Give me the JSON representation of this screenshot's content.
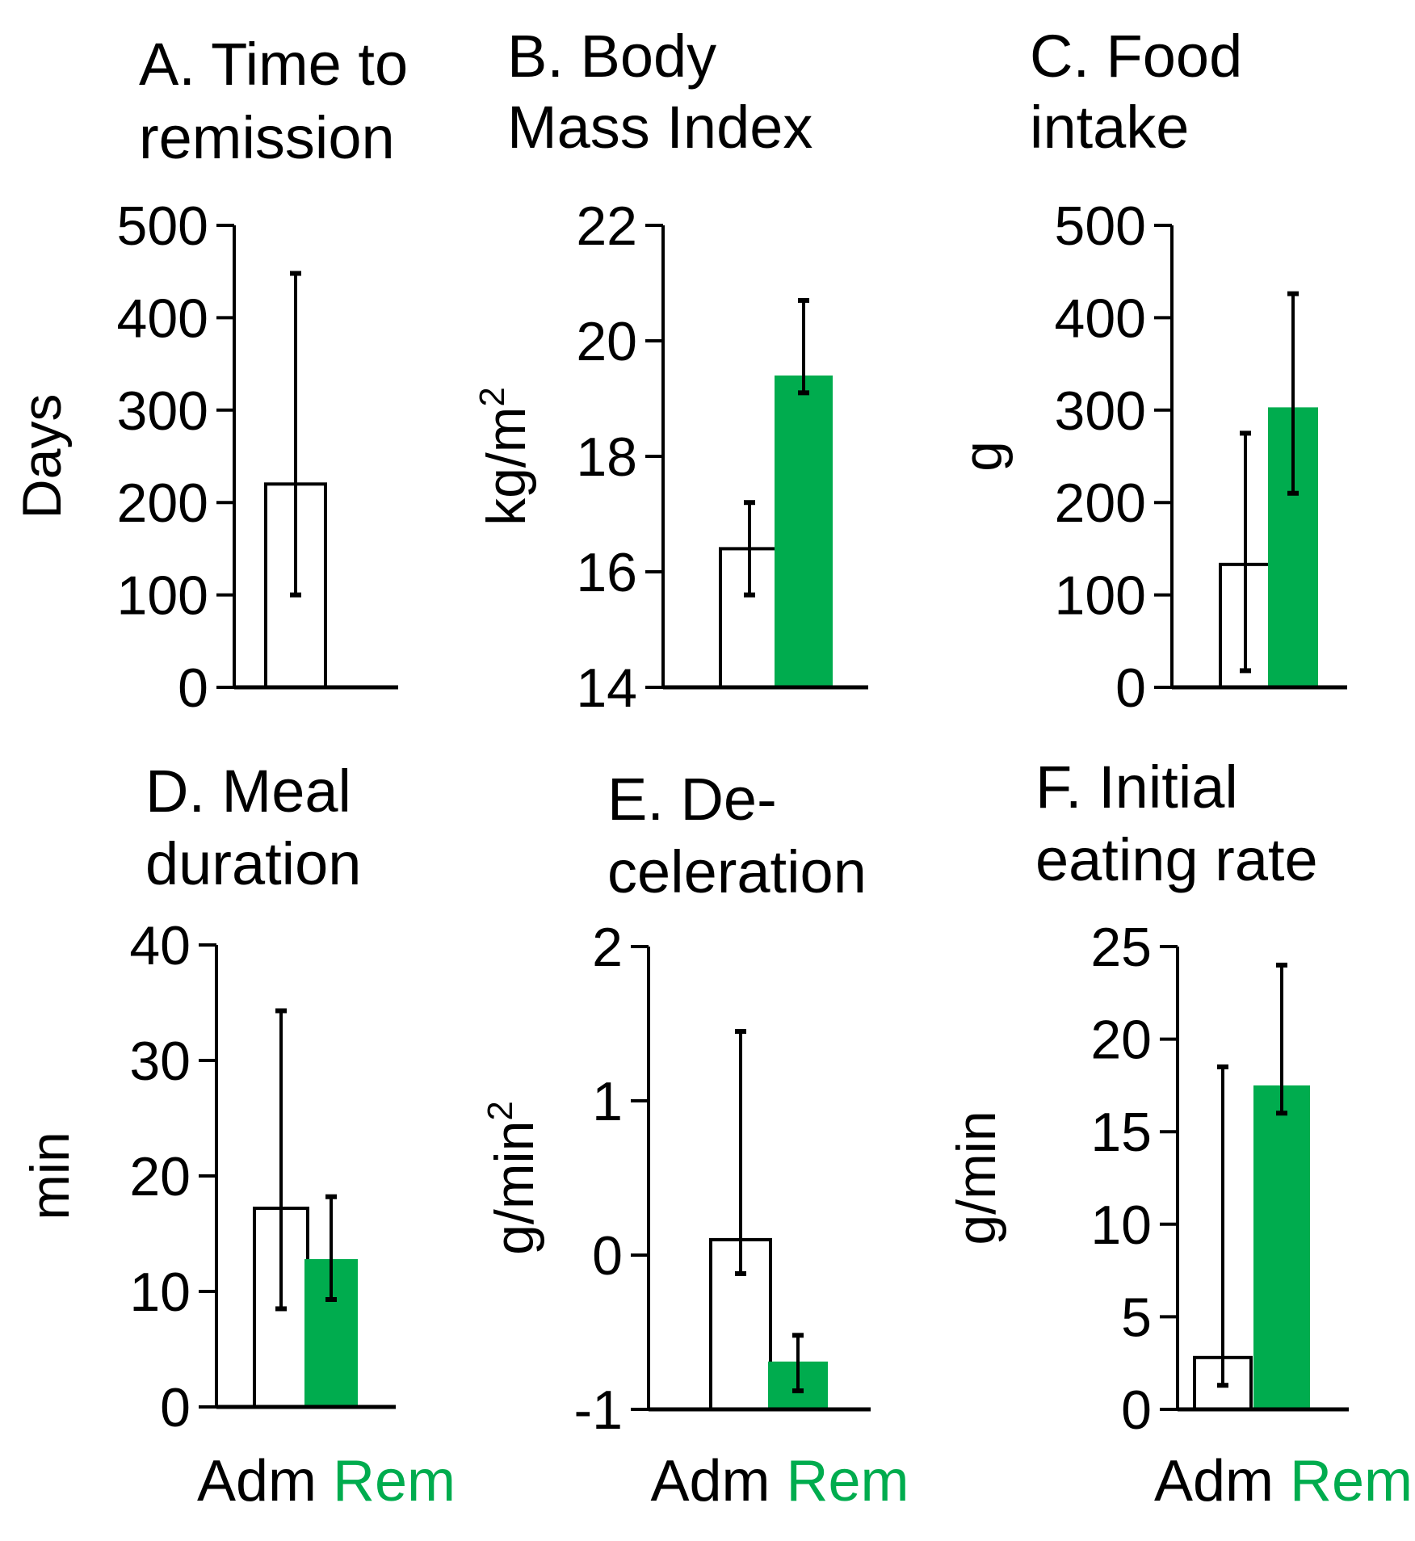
{
  "colors": {
    "adm": "#ffffff",
    "rem": "#00ac4e",
    "axis": "#000000"
  },
  "groups": [
    "Adm",
    "Rem"
  ],
  "chart_data": [
    {
      "type": "bar",
      "title": [
        "A. Time to",
        "remission"
      ],
      "ylabel": "Days",
      "ylim": [
        0,
        500
      ],
      "ticks": [
        "0",
        "100",
        "200",
        "300",
        "400",
        "500"
      ],
      "tick_values": [
        0,
        100,
        200,
        300,
        400,
        500
      ],
      "series": [
        {
          "name": "Adm",
          "value": 220,
          "err_low": 100,
          "err_high": 448
        }
      ]
    },
    {
      "type": "bar",
      "title": [
        "B. Body",
        "Mass Index"
      ],
      "ylabel": "kg/m",
      "ylabel_sup": "2",
      "ylim": [
        14,
        22
      ],
      "ticks": [
        "14",
        "16",
        "18",
        "20",
        "22"
      ],
      "tick_values": [
        14,
        16,
        18,
        20,
        22
      ],
      "series": [
        {
          "name": "Adm",
          "value": 16.4,
          "err_low": 15.6,
          "err_high": 17.2
        },
        {
          "name": "Rem",
          "value": 19.4,
          "err_low": 19.1,
          "err_high": 20.7
        }
      ]
    },
    {
      "type": "bar",
      "title": [
        "C. Food",
        "intake"
      ],
      "ylabel": "g",
      "ylim": [
        0,
        500
      ],
      "ticks": [
        "0",
        "100",
        "200",
        "300",
        "400",
        "500"
      ],
      "tick_values": [
        0,
        100,
        200,
        300,
        400,
        500
      ],
      "series": [
        {
          "name": "Adm",
          "value": 133,
          "err_low": 18,
          "err_high": 275
        },
        {
          "name": "Rem",
          "value": 303,
          "err_low": 210,
          "err_high": 426
        }
      ]
    },
    {
      "type": "bar",
      "title": [
        "D. Meal",
        "duration"
      ],
      "ylabel": "min",
      "ylim": [
        0,
        40
      ],
      "ticks": [
        "0",
        "10",
        "20",
        "30",
        "40"
      ],
      "tick_values": [
        0,
        10,
        20,
        30,
        40
      ],
      "series": [
        {
          "name": "Adm",
          "value": 17.2,
          "err_low": 8.5,
          "err_high": 34.3
        },
        {
          "name": "Rem",
          "value": 12.8,
          "err_low": 9.3,
          "err_high": 18.2
        }
      ]
    },
    {
      "type": "bar",
      "title": [
        "E. De-",
        "celeration"
      ],
      "ylabel": "g/min",
      "ylabel_sup": "2",
      "ylim": [
        -1,
        2
      ],
      "ticks": [
        "-1",
        "0",
        "1",
        "2"
      ],
      "tick_values": [
        -1,
        0,
        1,
        2
      ],
      "series": [
        {
          "name": "Adm",
          "value": 0.1,
          "err_low": -0.12,
          "err_high": 1.45
        },
        {
          "name": "Rem",
          "value": -0.69,
          "err_low": -0.88,
          "err_high": -0.52
        }
      ]
    },
    {
      "type": "bar",
      "title": [
        "F. Initial",
        "eating rate"
      ],
      "ylabel": "g/min",
      "ylim": [
        0,
        25
      ],
      "ticks": [
        "0",
        "5",
        "10",
        "15",
        "20",
        "25"
      ],
      "tick_values": [
        0,
        5,
        10,
        15,
        20,
        25
      ],
      "series": [
        {
          "name": "Adm",
          "value": 2.8,
          "err_low": 1.3,
          "err_high": 18.5
        },
        {
          "name": "Rem",
          "value": 17.5,
          "err_low": 16,
          "err_high": 24
        }
      ]
    }
  ]
}
